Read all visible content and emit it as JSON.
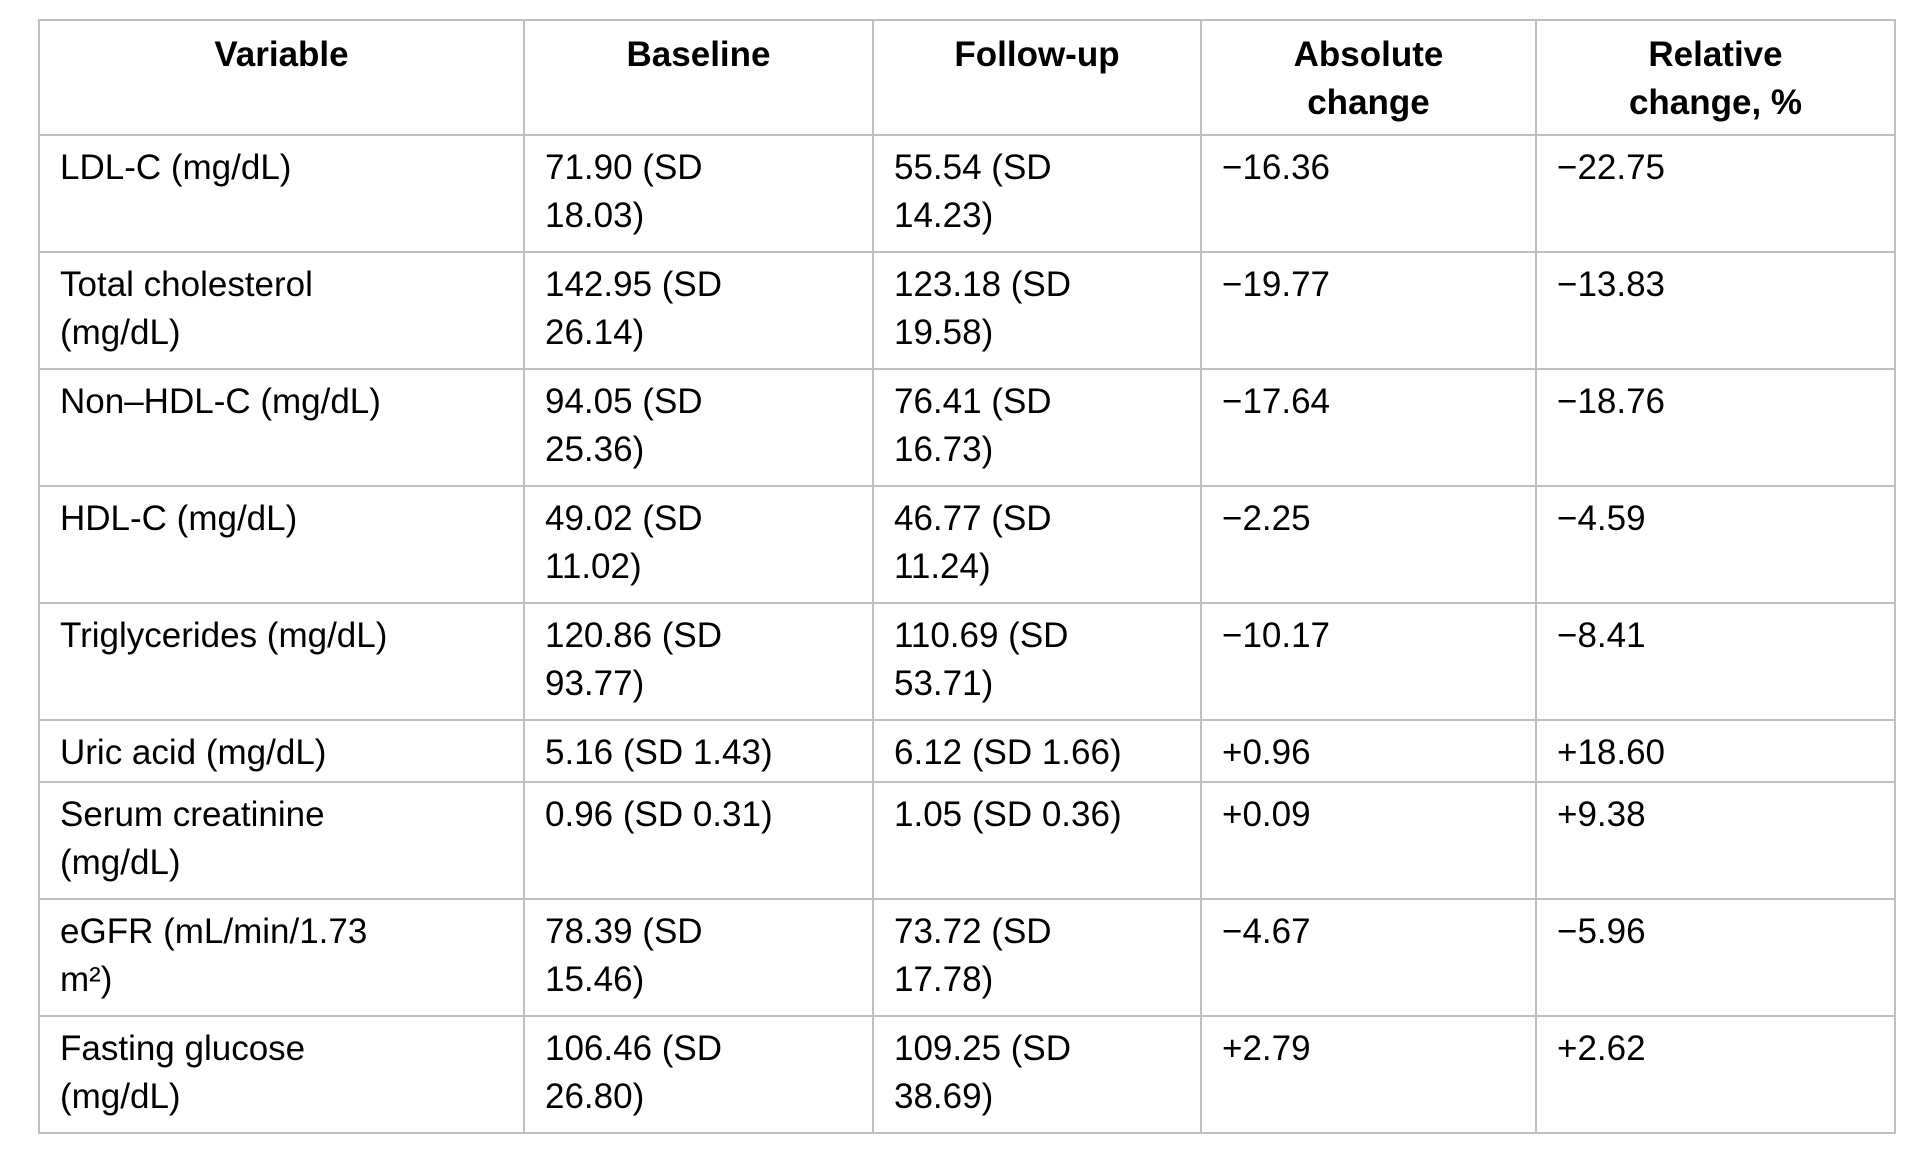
{
  "table": {
    "columns": [
      {
        "label": "Variable"
      },
      {
        "label": "Baseline"
      },
      {
        "label": "Follow-up"
      },
      {
        "label": "Absolute\nchange"
      },
      {
        "label": "Relative\nchange, %"
      }
    ],
    "rows": [
      {
        "variable": "LDL-C (mg/dL)",
        "baseline": "71.90 (SD\n18.03)",
        "followup": "55.54 (SD\n14.23)",
        "absolute": "−16.36",
        "relative": "−22.75"
      },
      {
        "variable": "Total cholesterol\n(mg/dL)",
        "baseline": "142.95 (SD\n26.14)",
        "followup": "123.18 (SD\n19.58)",
        "absolute": "−19.77",
        "relative": "−13.83"
      },
      {
        "variable": "Non–HDL-C (mg/dL)",
        "baseline": "94.05 (SD\n25.36)",
        "followup": "76.41 (SD\n16.73)",
        "absolute": "−17.64",
        "relative": "−18.76"
      },
      {
        "variable": "HDL-C (mg/dL)",
        "baseline": "49.02 (SD\n11.02)",
        "followup": "46.77 (SD\n11.24)",
        "absolute": "−2.25",
        "relative": "−4.59"
      },
      {
        "variable": "Triglycerides (mg/dL)",
        "baseline": "120.86 (SD\n93.77)",
        "followup": "110.69 (SD\n53.71)",
        "absolute": "−10.17",
        "relative": "−8.41"
      },
      {
        "variable": "Uric acid (mg/dL)",
        "baseline": "5.16 (SD 1.43)",
        "followup": "6.12 (SD 1.66)",
        "absolute": "+0.96",
        "relative": "+18.60"
      },
      {
        "variable": "Serum creatinine\n(mg/dL)",
        "baseline": "0.96 (SD 0.31)",
        "followup": "1.05 (SD 0.36)",
        "absolute": "+0.09",
        "relative": "+9.38"
      },
      {
        "variable": "eGFR (mL/min/1.73\nm²)",
        "baseline": "78.39 (SD\n15.46)",
        "followup": "73.72 (SD\n17.78)",
        "absolute": "−4.67",
        "relative": "−5.96"
      },
      {
        "variable": "Fasting glucose\n(mg/dL)",
        "baseline": "106.46 (SD\n26.80)",
        "followup": "109.25 (SD\n38.69)",
        "absolute": "+2.79",
        "relative": "+2.62"
      }
    ],
    "border_color": "#bfbfbf",
    "text_color": "#000000"
  }
}
